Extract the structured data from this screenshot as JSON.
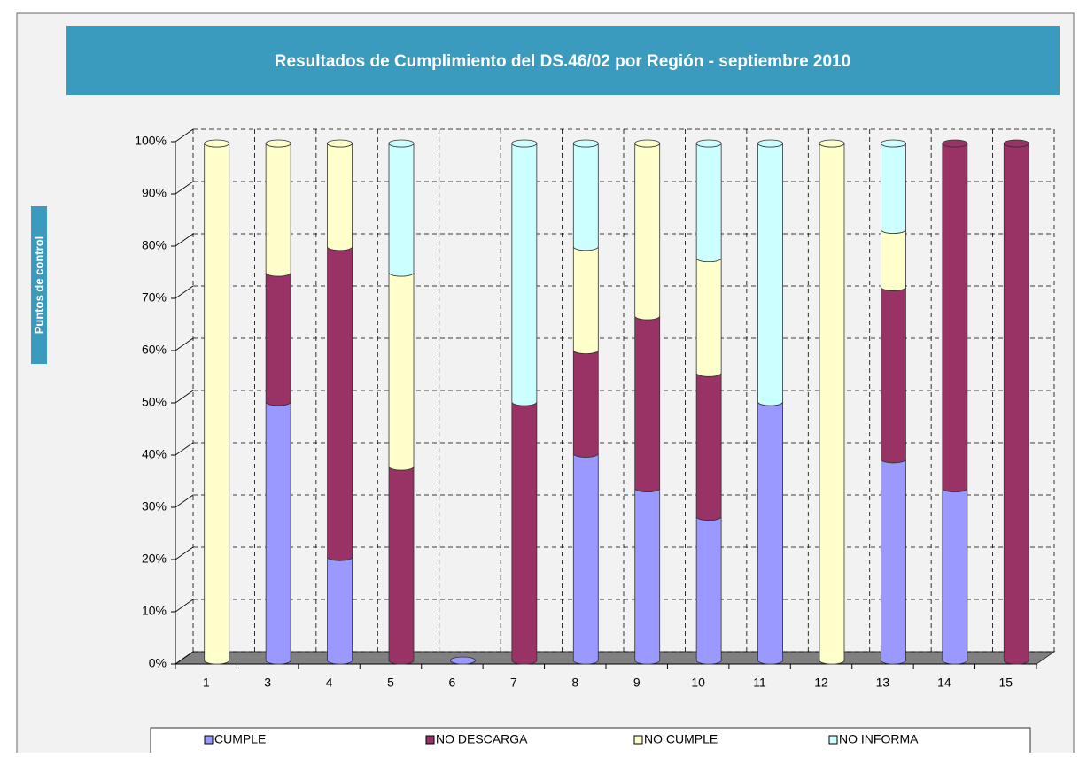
{
  "chart_data": {
    "type": "bar",
    "title": "Resultados de Cumplimiento del DS.46/02 por Región - septiembre 2010",
    "y_label": "Puntos de control",
    "categories": [
      "1",
      "3",
      "4",
      "5",
      "6",
      "7",
      "8",
      "9",
      "10",
      "11",
      "12",
      "13",
      "14",
      "15"
    ],
    "series": [
      {
        "name": "CUMPLE",
        "color": "#9999ff",
        "values": [
          0,
          50,
          20,
          0,
          0,
          0,
          40,
          33.3,
          27.8,
          50,
          0,
          38.9,
          33.3,
          0
        ]
      },
      {
        "name": "NO DESCARGA",
        "color": "#993366",
        "values": [
          0,
          25,
          60,
          37.5,
          0,
          50,
          20,
          33.3,
          27.8,
          0,
          0,
          33.3,
          66.7,
          100
        ]
      },
      {
        "name": "NO CUMPLE",
        "color": "#ffffcc",
        "values": [
          100,
          25,
          20,
          37.5,
          0,
          0,
          20,
          33.4,
          22.2,
          0,
          100,
          11.1,
          0,
          0
        ]
      },
      {
        "name": "NO INFORMA",
        "color": "#ccffff",
        "values": [
          0,
          0,
          0,
          25,
          0,
          50,
          20,
          0,
          22.2,
          50,
          0,
          16.7,
          0,
          0
        ]
      }
    ],
    "ylim": [
      0,
      100
    ],
    "yticks": [
      {
        "value": 0,
        "label": "0%"
      },
      {
        "value": 10,
        "label": "10%"
      },
      {
        "value": 20,
        "label": "20%"
      },
      {
        "value": 30,
        "label": "30%"
      },
      {
        "value": 40,
        "label": "40%"
      },
      {
        "value": 50,
        "label": "50%"
      },
      {
        "value": 60,
        "label": "60%"
      },
      {
        "value": 70,
        "label": "70%"
      },
      {
        "value": 80,
        "label": "80%"
      },
      {
        "value": 90,
        "label": "90%"
      },
      {
        "value": 100,
        "label": "100%"
      }
    ],
    "stacked": true,
    "grid": true,
    "legend": "bottom"
  }
}
